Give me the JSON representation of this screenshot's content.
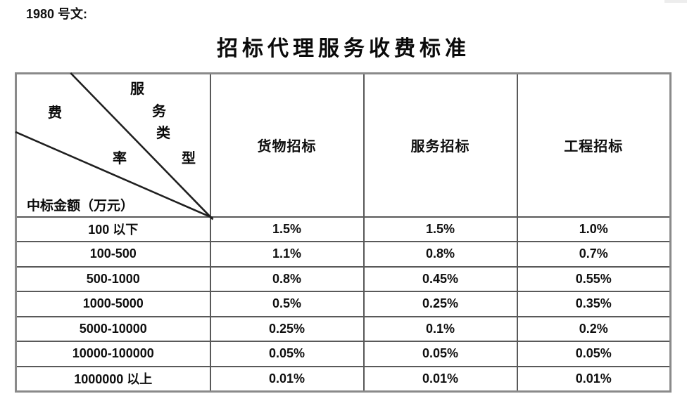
{
  "page": {
    "doc_label": "1980 号文:",
    "title": "招标代理服务收费标准"
  },
  "colors": {
    "table_border_outer": "#8a8a8a",
    "table_border_inner": "#595959",
    "diagonal_line": "#1f1f1f",
    "text": "#000000",
    "background": "#ffffff"
  },
  "table": {
    "diagonal_header": {
      "service_type_chars": [
        "服",
        "务",
        "类",
        "型"
      ],
      "fee_rate_chars": [
        "费",
        "率"
      ],
      "amount_label": "中标金额（万元）"
    },
    "columns": [
      "货物招标",
      "服务招标",
      "工程招标"
    ],
    "rows": [
      {
        "range": "100 以下",
        "values": [
          "1.5%",
          "1.5%",
          "1.0%"
        ]
      },
      {
        "range": "100-500",
        "values": [
          "1.1%",
          "0.8%",
          "0.7%"
        ]
      },
      {
        "range": "500-1000",
        "values": [
          "0.8%",
          "0.45%",
          "0.55%"
        ]
      },
      {
        "range": "1000-5000",
        "values": [
          "0.5%",
          "0.25%",
          "0.35%"
        ]
      },
      {
        "range": "5000-10000",
        "values": [
          "0.25%",
          "0.1%",
          "0.2%"
        ]
      },
      {
        "range": "10000-100000",
        "values": [
          "0.05%",
          "0.05%",
          "0.05%"
        ]
      },
      {
        "range": "1000000 以上",
        "values": [
          "0.01%",
          "0.01%",
          "0.01%"
        ]
      }
    ]
  }
}
